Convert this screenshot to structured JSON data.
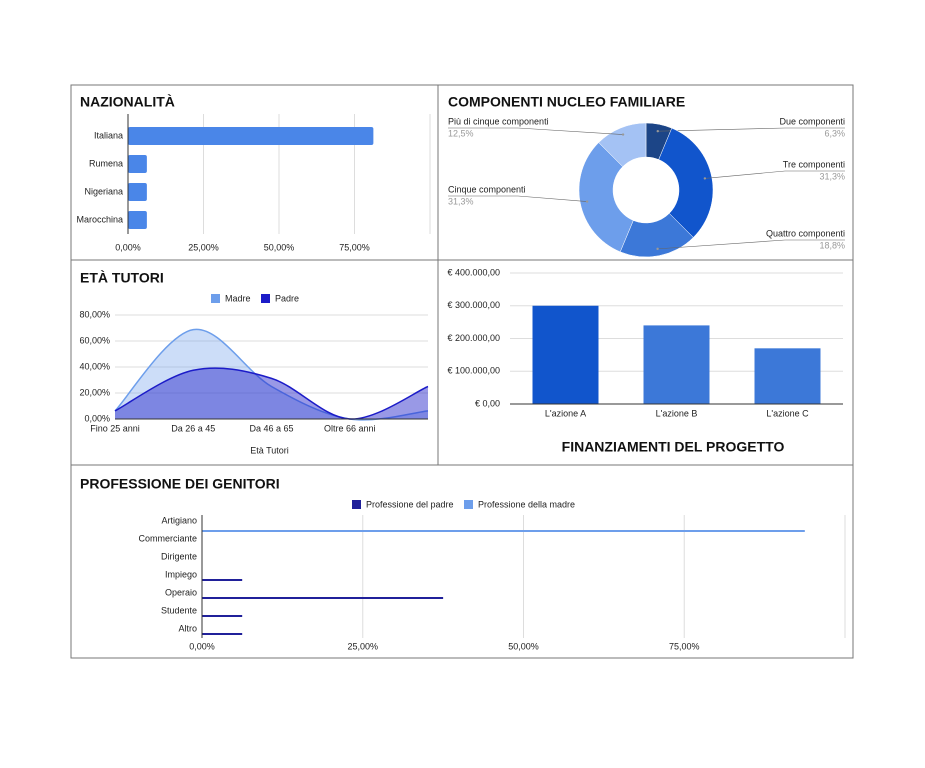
{
  "chart_data": [
    {
      "type": "bar",
      "orientation": "horizontal",
      "title": "NAZIONALITÀ",
      "categories": [
        "Italiana",
        "Rumena",
        "Nigeriana",
        "Marocchina"
      ],
      "values": [
        81.25,
        6.25,
        6.25,
        6.25
      ],
      "color": "#4a86e8",
      "xlim": [
        0,
        100
      ],
      "xticks": [
        {
          "value": 0,
          "label": "0,00%"
        },
        {
          "value": 25,
          "label": "25,00%"
        },
        {
          "value": 50,
          "label": "50,00%"
        },
        {
          "value": 75,
          "label": "75,00%"
        }
      ],
      "grid": true
    },
    {
      "type": "pie",
      "donut": true,
      "title": "COMPONENTI NUCLEO FAMILIARE",
      "categories": [
        "Due componenti",
        "Tre componenti",
        "Quattro componenti",
        "Cinque componenti",
        "Più di cinque componenti"
      ],
      "values": [
        6.3,
        31.3,
        18.8,
        31.3,
        12.5
      ],
      "value_labels": [
        "6,3%",
        "31,3%",
        "18,8%",
        "31,3%",
        "12,5%"
      ],
      "colors": [
        "#1c4587",
        "#1155cc",
        "#3c78d8",
        "#6d9eeb",
        "#a4c2f4"
      ]
    },
    {
      "type": "area",
      "title": "ETÀ TUTORI",
      "x_label": "Età Tutori",
      "categories": [
        "Fino 25 anni",
        "Da 26 a 45",
        "Da 46 a 65",
        "Oltre 66 anni",
        null
      ],
      "series": [
        {
          "name": "Madre",
          "color": "#6d9eeb",
          "values": [
            6.25,
            68.75,
            25,
            0,
            6.25
          ]
        },
        {
          "name": "Padre",
          "color": "#1c1cc8",
          "values": [
            6.25,
            37.5,
            31.25,
            0,
            25
          ]
        }
      ],
      "ylim": [
        0,
        80
      ],
      "yticks": [
        {
          "value": 0,
          "label": "0,00%"
        },
        {
          "value": 20,
          "label": "20,00%"
        },
        {
          "value": 40,
          "label": "40,00%"
        },
        {
          "value": 60,
          "label": "60,00%"
        },
        {
          "value": 80,
          "label": "80,00%"
        }
      ],
      "grid": true,
      "legend": "top"
    },
    {
      "type": "bar",
      "title": "FINANZIAMENTI DEL PROGETTO",
      "categories": [
        "L'azione A",
        "L'azione B",
        "L'azione C"
      ],
      "values": [
        300000,
        240000,
        170000
      ],
      "colors": [
        "#1155cc",
        "#3c78d8",
        "#3c78d8"
      ],
      "ylim": [
        0,
        400000
      ],
      "yticks": [
        {
          "value": 0,
          "label": "€ 0,00"
        },
        {
          "value": 100000,
          "label": "€ 100.000,00"
        },
        {
          "value": 200000,
          "label": "€ 200.000,00"
        },
        {
          "value": 300000,
          "label": "€ 300.000,00"
        },
        {
          "value": 400000,
          "label": "€ 400.000,00"
        }
      ],
      "grid": true
    },
    {
      "type": "bar",
      "orientation": "horizontal",
      "title": "PROFESSIONE DEI GENITORI",
      "categories": [
        "Artigiano",
        "Commerciante",
        "Dirigente",
        "Impiego",
        "Operaio",
        "Studente",
        "Altro"
      ],
      "series": [
        {
          "name": "Professione del padre",
          "color": "#20209a",
          "values": [
            0,
            0,
            0,
            6.25,
            37.5,
            6.25,
            6.25
          ]
        },
        {
          "name": "Professione della madre",
          "color": "#6d9eeb",
          "values": [
            93.75,
            0,
            0,
            0,
            0,
            0,
            0
          ]
        }
      ],
      "xlim": [
        0,
        100
      ],
      "xticks": [
        {
          "value": 0,
          "label": "0,00%"
        },
        {
          "value": 25,
          "label": "25,00%"
        },
        {
          "value": 50,
          "label": "50,00%"
        },
        {
          "value": 75,
          "label": "75,00%"
        }
      ],
      "grid": true,
      "legend": "top"
    }
  ]
}
